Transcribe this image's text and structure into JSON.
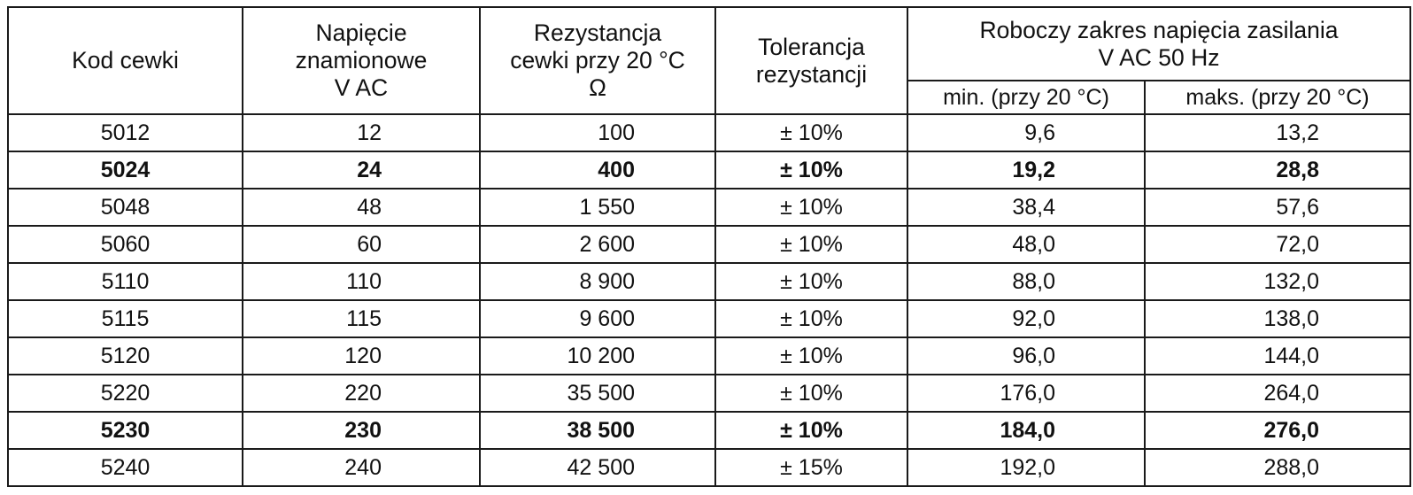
{
  "table": {
    "headers": {
      "code": "Kod cewki",
      "voltage": [
        "Napięcie",
        "znamionowe",
        "V AC"
      ],
      "resistance": [
        "Rezystancja",
        "cewki przy 20 °C",
        "Ω"
      ],
      "tolerance": [
        "Tolerancja",
        "rezystancji"
      ],
      "range": [
        "Roboczy zakres napięcia zasilania",
        "V AC 50 Hz"
      ],
      "min": "min. (przy 20 °C)",
      "max": "maks. (przy 20 °C)"
    },
    "rows": [
      {
        "code": "5012",
        "voltage": "12",
        "resistance": "100",
        "tolerance": "± 10%",
        "min": "9,6",
        "max": "13,2",
        "bold": false
      },
      {
        "code": "5024",
        "voltage": "24",
        "resistance": "400",
        "tolerance": "± 10%",
        "min": "19,2",
        "max": "28,8",
        "bold": true
      },
      {
        "code": "5048",
        "voltage": "48",
        "resistance": "1 550",
        "tolerance": "± 10%",
        "min": "38,4",
        "max": "57,6",
        "bold": false
      },
      {
        "code": "5060",
        "voltage": "60",
        "resistance": "2 600",
        "tolerance": "± 10%",
        "min": "48,0",
        "max": "72,0",
        "bold": false
      },
      {
        "code": "5110",
        "voltage": "110",
        "resistance": "8 900",
        "tolerance": "± 10%",
        "min": "88,0",
        "max": "132,0",
        "bold": false
      },
      {
        "code": "5115",
        "voltage": "115",
        "resistance": "9 600",
        "tolerance": "± 10%",
        "min": "92,0",
        "max": "138,0",
        "bold": false
      },
      {
        "code": "5120",
        "voltage": "120",
        "resistance": "10 200",
        "tolerance": "± 10%",
        "min": "96,0",
        "max": "144,0",
        "bold": false
      },
      {
        "code": "5220",
        "voltage": "220",
        "resistance": "35 500",
        "tolerance": "± 10%",
        "min": "176,0",
        "max": "264,0",
        "bold": false
      },
      {
        "code": "5230",
        "voltage": "230",
        "resistance": "38 500",
        "tolerance": "± 10%",
        "min": "184,0",
        "max": "276,0",
        "bold": true
      },
      {
        "code": "5240",
        "voltage": "240",
        "resistance": "42 500",
        "tolerance": "± 15%",
        "min": "192,0",
        "max": "288,0",
        "bold": false
      }
    ]
  }
}
